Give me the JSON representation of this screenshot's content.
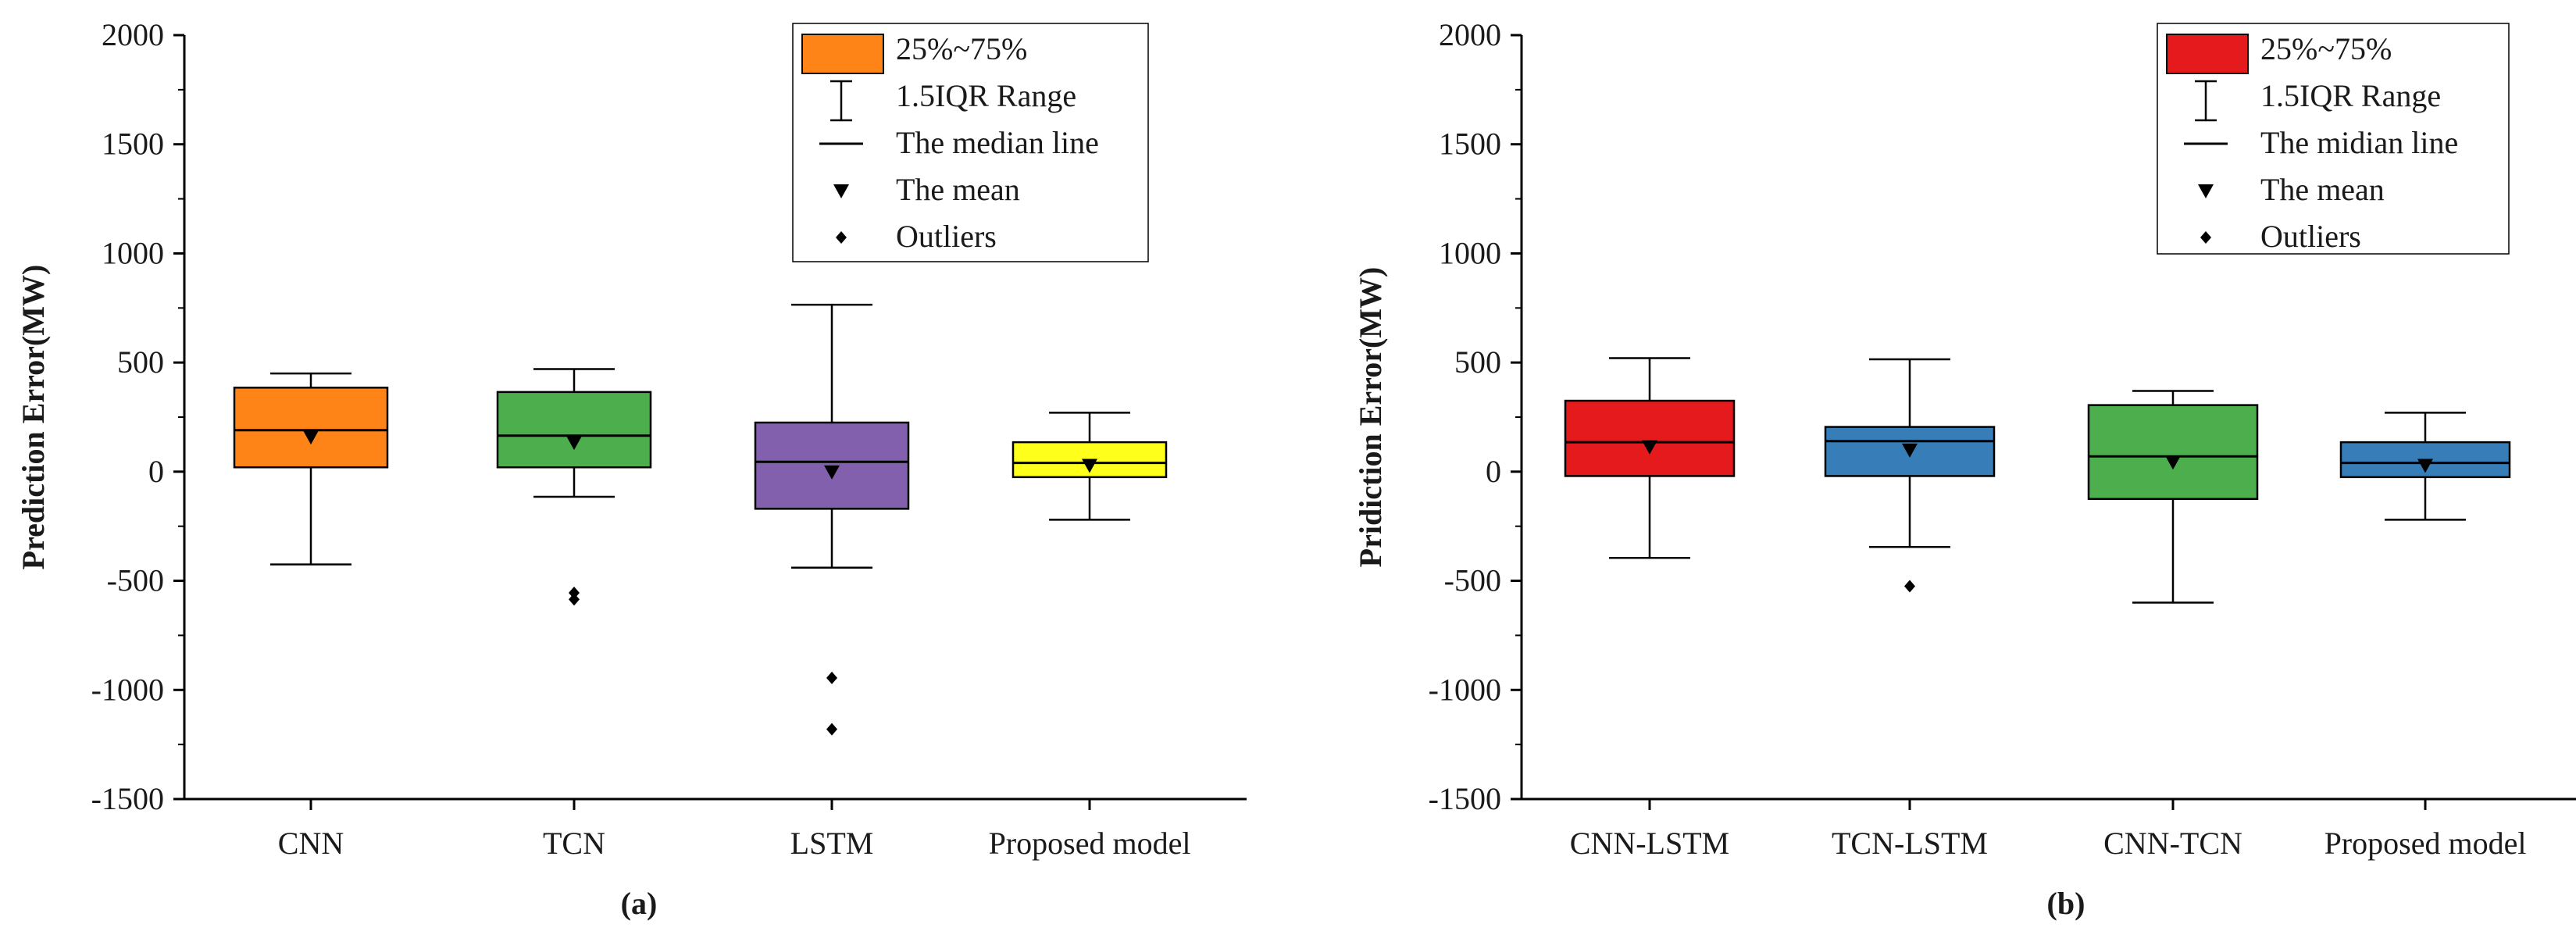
{
  "chart_data": [
    {
      "type": "box",
      "panel": "(a)",
      "ylabel": "Prediction Error(MW)",
      "ylim": [
        -1500,
        2000
      ],
      "yticks": [
        -1500,
        -1000,
        -500,
        0,
        500,
        1000,
        1500,
        2000
      ],
      "ytick_labels": [
        "-1500",
        "-1000",
        "-500",
        "0",
        "500",
        "1000",
        "1500",
        "2000"
      ],
      "categories": [
        "CNN",
        "TCN",
        "LSTM",
        "Proposed model"
      ],
      "boxes": [
        {
          "label": "CNN",
          "color": "#FF8417",
          "q1": 20,
          "median": 190,
          "q3": 385,
          "whisker_low": -425,
          "whisker_high": 450,
          "mean": 160,
          "outliers": []
        },
        {
          "label": "TCN",
          "color": "#4CAE4C",
          "q1": 20,
          "median": 165,
          "q3": 365,
          "whisker_low": -115,
          "whisker_high": 470,
          "mean": 135,
          "outliers": [
            -555,
            -585
          ]
        },
        {
          "label": "LSTM",
          "color": "#8260AE",
          "q1": -170,
          "median": 45,
          "q3": 225,
          "whisker_low": -440,
          "whisker_high": 765,
          "mean": 0,
          "outliers": [
            -945,
            -1180
          ]
        },
        {
          "label": "Proposed model",
          "color": "#FFFF1C",
          "q1": -25,
          "median": 40,
          "q3": 135,
          "whisker_low": -220,
          "whisker_high": 270,
          "mean": 30,
          "outliers": []
        }
      ],
      "legend": {
        "position": "top-right",
        "swatch_color": "#FF8417",
        "items": [
          "25%~75%",
          "1.5IQR Range",
          "The median line",
          "The mean",
          "Outliers"
        ]
      }
    },
    {
      "type": "box",
      "panel": "(b)",
      "ylabel": "Pridiction Error(MW)",
      "ylim": [
        -1500,
        2000
      ],
      "yticks": [
        -1500,
        -1000,
        -500,
        0,
        500,
        1000,
        1500,
        2000
      ],
      "ytick_labels": [
        "-1500",
        "-1000",
        "-500",
        "0",
        "500",
        "1000",
        "1500",
        "2000"
      ],
      "categories": [
        "CNN-LSTM",
        "TCN-LSTM",
        "CNN-TCN",
        "Proposed model"
      ],
      "boxes": [
        {
          "label": "CNN-LSTM",
          "color": "#E41A1C",
          "q1": -20,
          "median": 135,
          "q3": 325,
          "whisker_low": -395,
          "whisker_high": 520,
          "mean": 115,
          "outliers": []
        },
        {
          "label": "TCN-LSTM",
          "color": "#377EB8",
          "q1": -20,
          "median": 140,
          "q3": 205,
          "whisker_low": -345,
          "whisker_high": 515,
          "mean": 100,
          "outliers": [
            -525
          ]
        },
        {
          "label": "CNN-TCN",
          "color": "#4CAE4C",
          "q1": -125,
          "median": 70,
          "q3": 305,
          "whisker_low": -600,
          "whisker_high": 370,
          "mean": 45,
          "outliers": []
        },
        {
          "label": "Proposed model",
          "color": "#377EB8",
          "q1": -25,
          "median": 40,
          "q3": 135,
          "whisker_low": -220,
          "whisker_high": 270,
          "mean": 30,
          "outliers": []
        }
      ],
      "legend": {
        "position": "top-right",
        "swatch_color": "#E41A1C",
        "items": [
          "25%~75%",
          "1.5IQR Range",
          "The midian line",
          "The mean",
          "Outliers"
        ]
      }
    }
  ]
}
